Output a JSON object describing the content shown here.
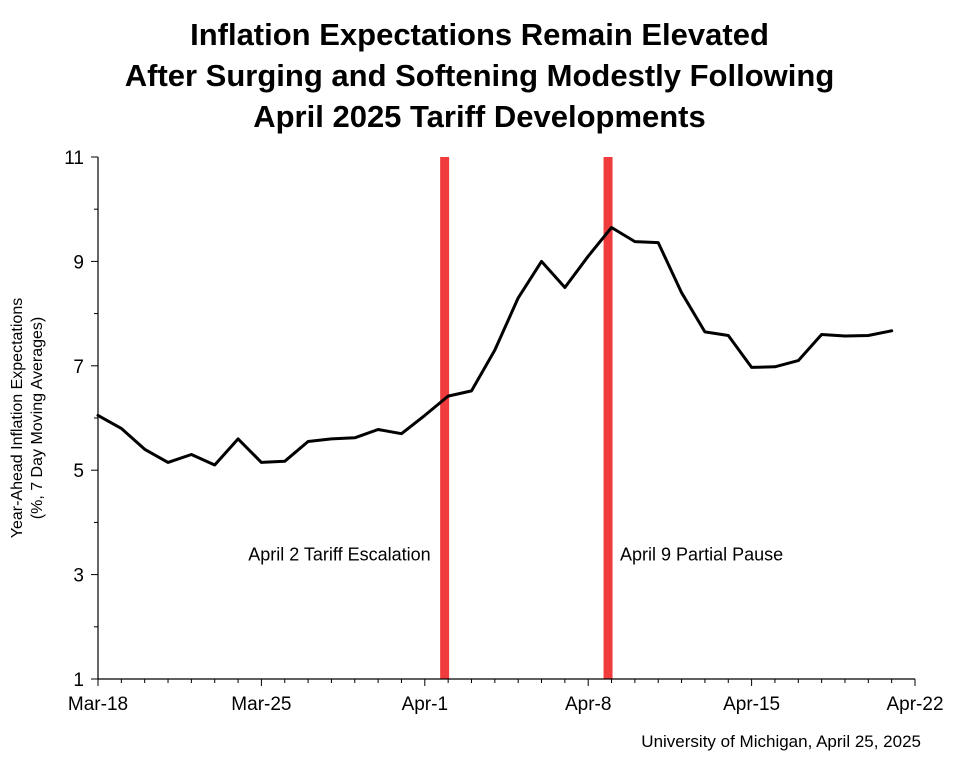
{
  "chart_data": {
    "type": "line",
    "title_lines": [
      "Inflation Expectations Remain Elevated",
      "After Surging and Softening Modestly Following",
      "April 2025 Tariff Developments"
    ],
    "ylabel_lines": [
      "Year-Ahead Inflation Expectations",
      "(%, 7 Day Moving Averages)"
    ],
    "xlabel": "",
    "ylim": [
      1,
      11
    ],
    "yticks": [
      1,
      3,
      5,
      7,
      9,
      11
    ],
    "xlim": [
      0,
      35
    ],
    "xticks": [
      {
        "x": 0,
        "label": "Mar-18"
      },
      {
        "x": 7,
        "label": "Mar-25"
      },
      {
        "x": 14,
        "label": "Apr-1"
      },
      {
        "x": 21,
        "label": "Apr-8"
      },
      {
        "x": 28,
        "label": "Apr-15"
      },
      {
        "x": 35,
        "label": "Apr-22"
      }
    ],
    "series": [
      {
        "color": "#000000",
        "x": [
          0,
          1,
          2,
          3,
          4,
          5,
          6,
          7,
          8,
          9,
          10,
          11,
          12,
          13,
          14,
          15,
          16,
          17,
          18,
          19,
          20,
          21,
          22,
          23,
          24,
          25,
          26,
          27,
          28,
          29,
          30,
          31,
          32,
          33,
          34
        ],
        "values": [
          6.05,
          5.8,
          5.4,
          5.15,
          5.3,
          5.1,
          5.6,
          5.15,
          5.17,
          5.55,
          5.6,
          5.62,
          5.78,
          5.7,
          6.05,
          6.42,
          6.52,
          7.3,
          8.3,
          9.0,
          8.5,
          9.1,
          9.65,
          9.38,
          9.36,
          8.4,
          7.65,
          7.58,
          6.97,
          6.98,
          7.1,
          7.6,
          7.57,
          7.58,
          7.67
        ]
      }
    ],
    "events": [
      {
        "x": 14.85,
        "label": "April 2 Tariff Escalation",
        "label_side": "left",
        "color": "#f03c3c"
      },
      {
        "x": 21.85,
        "label": "April 9 Partial Pause",
        "label_side": "right",
        "color": "#f03c3c"
      }
    ],
    "event_label_y": 3.4,
    "grid": false,
    "legend": "none"
  },
  "source": "University of Michigan, April 25, 2025"
}
